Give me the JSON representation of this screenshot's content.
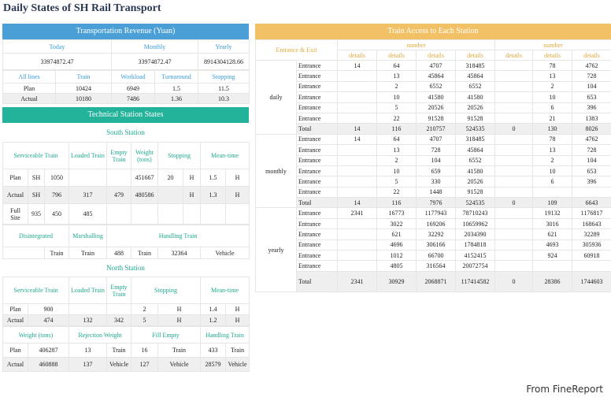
{
  "title": "Daily States of SH Rail Transport",
  "credit": "From FineReport",
  "revenue": {
    "header": "Transportation Revenue (Yuan)",
    "cols": [
      "Today",
      "Monthly",
      "Yearly"
    ],
    "vals": [
      "33974872.47",
      "33974872.47",
      "8914304128.66"
    ],
    "lines_hdr": [
      "All lines",
      "Train",
      "Workload",
      "Turnaround",
      "Stopping"
    ],
    "rows": [
      [
        "Plan",
        "10424",
        "6949",
        "1.5",
        "11.5"
      ],
      [
        "Actual",
        "10180",
        "7486",
        "1.36",
        "10.3"
      ]
    ]
  },
  "tech": {
    "header": "Technical Station States",
    "south": {
      "title": "South Station",
      "hdr": [
        "Serviceable Train",
        "Loaded Train",
        "Empty Train",
        "Weight (tons)",
        "Stopping",
        "Mean-time"
      ],
      "plan": [
        "Plan",
        "SH",
        "1050",
        "",
        "",
        "451667",
        "20",
        "H",
        "1.5",
        "H"
      ],
      "actual": [
        "Actual",
        "SH",
        "796",
        "317",
        "479",
        "480586",
        "",
        "H",
        "1.3",
        "H"
      ],
      "full": [
        "Full Site",
        "935",
        "450",
        "485"
      ],
      "hdr2": [
        "Disintegrated",
        "Marshalling",
        "Handling Train"
      ],
      "row2": [
        "Train",
        "Train",
        "488",
        "Train",
        "32364",
        "Vehicle"
      ]
    },
    "north": {
      "title": "North Station",
      "hdr": [
        "Serviceable Train",
        "Loaded Train",
        "Empty Train",
        "Stopping",
        "Mean-time"
      ],
      "plan": [
        "Plan",
        "900",
        "",
        "",
        "2",
        "H",
        "1.4",
        "H"
      ],
      "actual": [
        "Actual",
        "474",
        "132",
        "342",
        "5",
        "H",
        "1.2",
        "H"
      ],
      "hdr2": [
        "Weight (tons)",
        "Rejection Weight",
        "Fill Empty",
        "Handling Train"
      ],
      "rows2": [
        [
          "Plan",
          "406287",
          "13",
          "Train",
          "16",
          "Train",
          "433",
          "Train"
        ],
        [
          "Actual",
          "460888",
          "137",
          "Vehicle",
          "127",
          "Vehicle",
          "28579",
          "Vehicle"
        ]
      ]
    }
  },
  "access": {
    "header": "Train Access to Each Station",
    "entrance_exit": "Entrance & Exit",
    "number": "number",
    "details": "details",
    "groups": [
      {
        "name": "daily",
        "rows": [
          [
            "Entrance",
            "14",
            "64",
            "4707",
            "318485",
            "",
            "78",
            "4762"
          ],
          [
            "Entrance",
            "",
            "13",
            "45864",
            "45864",
            "",
            "13",
            "728"
          ],
          [
            "Entrance",
            "",
            "2",
            "6552",
            "6552",
            "",
            "2",
            "104"
          ],
          [
            "Entrance",
            "",
            "10",
            "41580",
            "41580",
            "",
            "10",
            "653"
          ],
          [
            "Entrance",
            "",
            "5",
            "20526",
            "20526",
            "",
            "6",
            "396"
          ],
          [
            "Entrance",
            "",
            "22",
            "91528",
            "91528",
            "",
            "21",
            "1383"
          ],
          [
            "Total",
            "14",
            "116",
            "210757",
            "524535",
            "0",
            "130",
            "8026"
          ]
        ]
      },
      {
        "name": "monthly",
        "rows": [
          [
            "Entrance",
            "14",
            "64",
            "4707",
            "318485",
            "",
            "78",
            "4762"
          ],
          [
            "Entrance",
            "",
            "13",
            "728",
            "45864",
            "",
            "13",
            "728"
          ],
          [
            "Entrance",
            "",
            "2",
            "104",
            "6552",
            "",
            "2",
            "104"
          ],
          [
            "Entrance",
            "",
            "10",
            "659",
            "41580",
            "",
            "10",
            "653"
          ],
          [
            "Entrance",
            "",
            "5",
            "330",
            "20526",
            "",
            "6",
            "396"
          ],
          [
            "Entrance",
            "",
            "22",
            "1448",
            "91528",
            "",
            "",
            ""
          ],
          [
            "Total",
            "14",
            "116",
            "7976",
            "524535",
            "0",
            "109",
            "6643"
          ]
        ]
      },
      {
        "name": "yearly",
        "rows": [
          [
            "Entrance",
            "2341",
            "16773",
            "1177943",
            "78710243",
            "",
            "19132",
            "1176817"
          ],
          [
            "Entrance",
            "",
            "3022",
            "169206",
            "10659962",
            "",
            "3016",
            "168643"
          ],
          [
            "Entrance",
            "",
            "621",
            "32292",
            "2034390",
            "",
            "621",
            "32289"
          ],
          [
            "Entrance",
            "",
            "4696",
            "306166",
            "1784818",
            "",
            "4693",
            "305936"
          ],
          [
            "Entrance",
            "",
            "1012",
            "66700",
            "4152415",
            "",
            "924",
            "60918"
          ],
          [
            "Entrance",
            "",
            "4805",
            "316564",
            "20072754",
            "",
            "",
            ""
          ],
          [
            "Total",
            "2341",
            "30929",
            "2068871",
            "117414582",
            "0",
            "28386",
            "1744603"
          ]
        ]
      }
    ]
  }
}
